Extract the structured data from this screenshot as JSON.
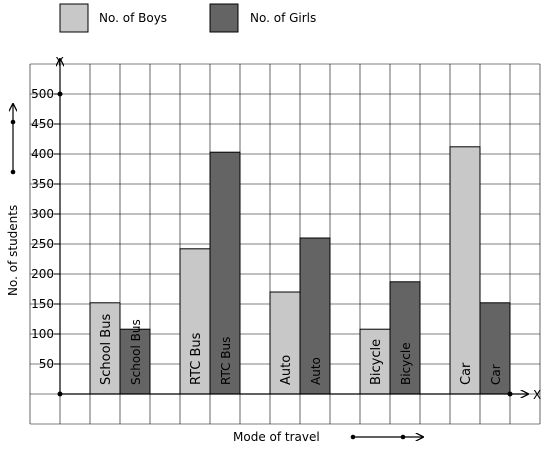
{
  "chart_data": {
    "type": "bar",
    "title": "",
    "xlabel": "Mode of travel",
    "ylabel": "No. of students",
    "x_axis_letter": "X",
    "y_axis_letter": "Y",
    "categories": [
      "School Bus",
      "RTC Bus",
      "Auto",
      "Bicycle",
      "Car"
    ],
    "series": [
      {
        "name": "No. of Boys",
        "color": "#c8c8c8",
        "values": [
          152,
          242,
          170,
          108,
          412
        ]
      },
      {
        "name": "No. of Girls",
        "color": "#646464",
        "values": [
          108,
          403,
          260,
          187,
          152
        ]
      }
    ],
    "ylim": [
      0,
      550
    ],
    "yticks": [
      "50",
      "100",
      "150",
      "200",
      "250",
      "300",
      "350",
      "400",
      "450",
      "500"
    ],
    "grid": true,
    "legend": "top-left"
  }
}
